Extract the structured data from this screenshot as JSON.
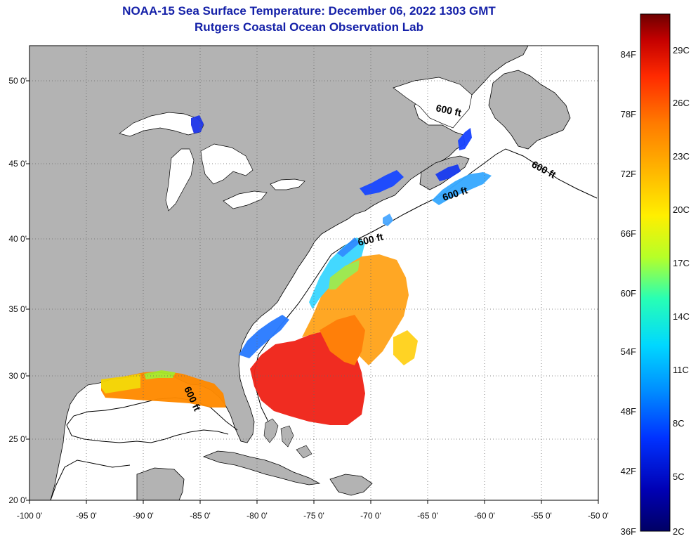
{
  "title": {
    "line1": "NOAA-15 Sea Surface Temperature:  December 06, 2022 1303 GMT",
    "line2": "Rutgers Coastal Ocean Observation Lab"
  },
  "map": {
    "x_ticks": [
      "-100 0'",
      "-95 0'",
      "-90 0'",
      "-85 0'",
      "-80 0'",
      "-75 0'",
      "-70 0'",
      "-65 0'",
      "-60 0'",
      "-55 0'",
      "-50 0'"
    ],
    "y_ticks": [
      "50 0'",
      "45 0'",
      "40 0'",
      "35 0'",
      "30 0'",
      "25 0'",
      "20 0'"
    ],
    "isobath_label": "600 ft",
    "land_color": "#b3b3b3",
    "water_color": "#ffffff"
  },
  "colorbar": {
    "fahrenheit": [
      "84F",
      "78F",
      "72F",
      "66F",
      "60F",
      "54F",
      "48F",
      "42F",
      "36F"
    ],
    "celsius": [
      "29C",
      "26C",
      "23C",
      "20C",
      "17C",
      "14C",
      "11C",
      "8C",
      "5C",
      "2C"
    ],
    "colors": [
      "#6e0000",
      "#c40000",
      "#ff2a00",
      "#ff7a00",
      "#ffb400",
      "#ffef00",
      "#b6ff28",
      "#28ffb4",
      "#00d8ff",
      "#008cff",
      "#0032ff",
      "#0000b4",
      "#000064"
    ]
  }
}
